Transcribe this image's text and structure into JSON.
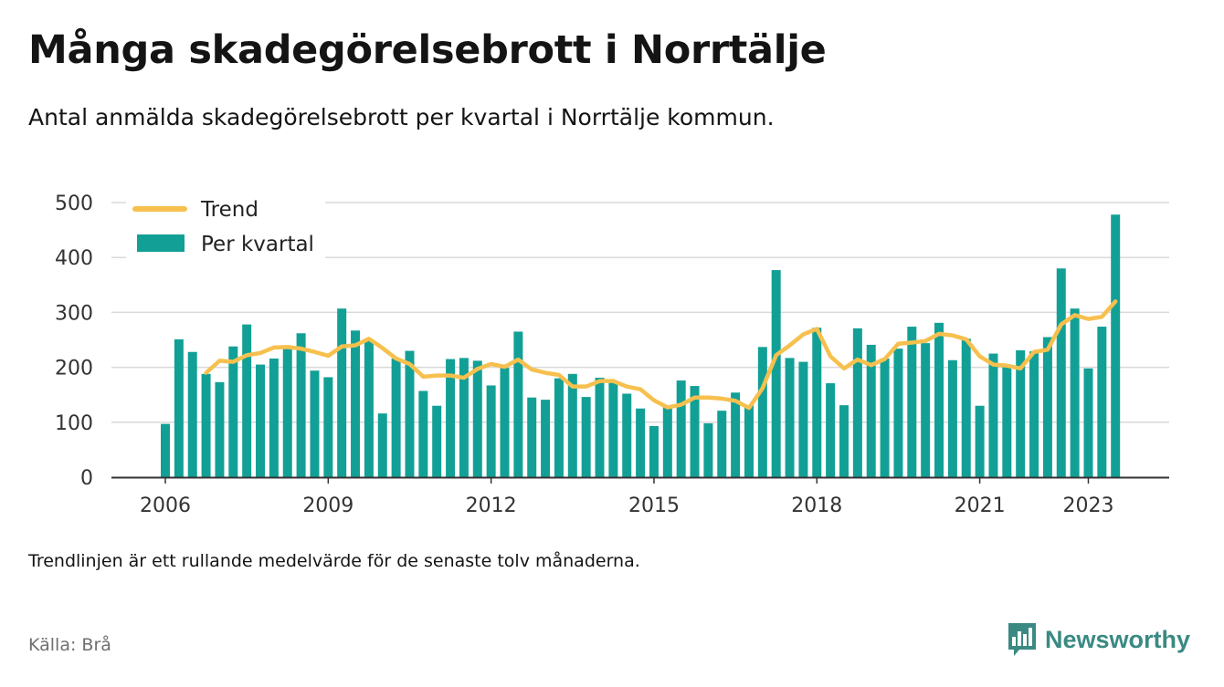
{
  "header": {
    "title": "Många skadegörelsebrott i Norrtälje",
    "subtitle": "Antal anmälda skadegörelsebrott per kvartal i Norrtälje kommun."
  },
  "footer": {
    "footnote": "Trendlinjen är ett rullande medelvärde för de senaste tolv månaderna.",
    "source": "Källa: Brå",
    "brand": "Newsworthy",
    "brand_icon": "bar-chart-speech-bubble-icon"
  },
  "colors": {
    "bars": "#12a096",
    "trend": "#f7c04e",
    "grid": "#d9d9d9",
    "axis": "#333333",
    "brand": "#3a8a83"
  },
  "chart_data": {
    "type": "bar",
    "title": "Många skadegörelsebrott i Norrtälje",
    "subtitle": "Antal anmälda skadegörelsebrott per kvartal i Norrtälje kommun.",
    "x_ticks": [
      "2006",
      "2009",
      "2012",
      "2015",
      "2018",
      "2021",
      "2023"
    ],
    "y_ticks": [
      0,
      100,
      200,
      300,
      400,
      500
    ],
    "ylim": [
      0,
      500
    ],
    "grid": true,
    "legend_position": "top-left",
    "start_quarter": "2006 Q1",
    "end_quarter": "2023 Q3",
    "series": [
      {
        "name": "Per kvartal",
        "type": "bar",
        "values": [
          97,
          251,
          228,
          188,
          173,
          238,
          278,
          205,
          216,
          235,
          262,
          194,
          182,
          307,
          267,
          248,
          116,
          216,
          230,
          157,
          130,
          215,
          217,
          212,
          167,
          199,
          265,
          145,
          141,
          180,
          188,
          146,
          181,
          172,
          152,
          125,
          93,
          129,
          176,
          166,
          98,
          121,
          154,
          131,
          237,
          377,
          217,
          210,
          272,
          171,
          131,
          271,
          241,
          216,
          234,
          274,
          244,
          281,
          213,
          252,
          130,
          225,
          205,
          231,
          229,
          255,
          380,
          307,
          198,
          274,
          478
        ]
      },
      {
        "name": "Trend",
        "type": "line",
        "values": [
          null,
          null,
          null,
          190,
          212,
          210,
          222,
          226,
          236,
          237,
          234,
          228,
          221,
          238,
          240,
          252,
          235,
          216,
          206,
          183,
          185,
          185,
          181,
          197,
          206,
          201,
          214,
          196,
          190,
          186,
          165,
          165,
          175,
          175,
          165,
          160,
          140,
          127,
          132,
          145,
          145,
          143,
          139,
          126,
          162,
          222,
          240,
          260,
          270,
          220,
          198,
          214,
          204,
          215,
          243,
          245,
          248,
          261,
          258,
          251,
          220,
          205,
          203,
          198,
          228,
          232,
          278,
          295,
          288,
          292,
          320
        ]
      }
    ]
  }
}
